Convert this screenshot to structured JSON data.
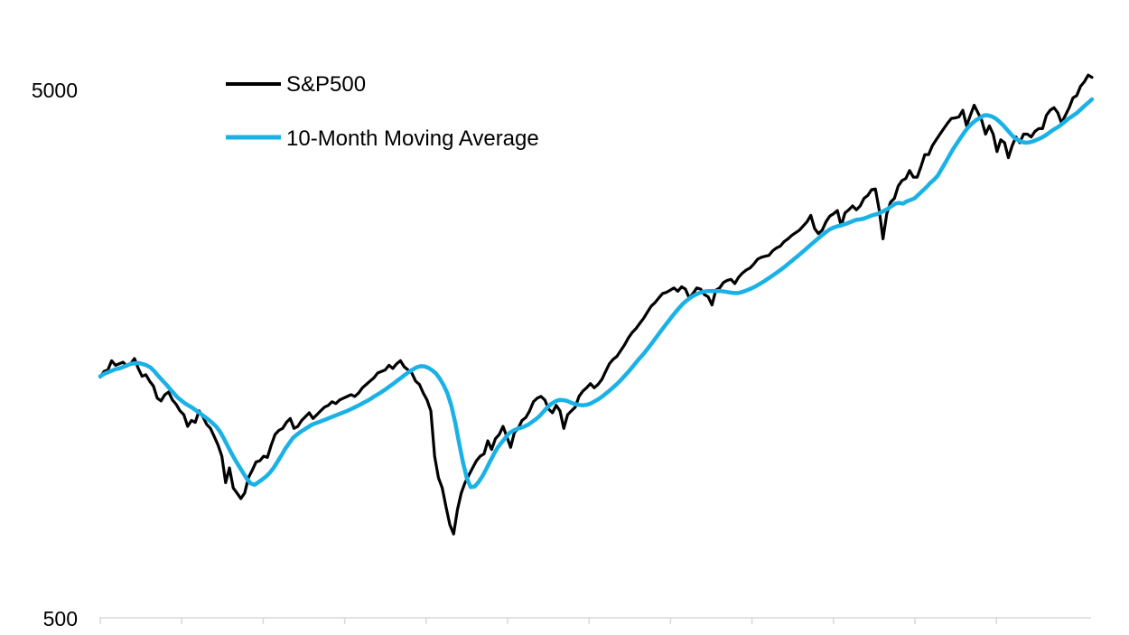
{
  "chart_data": {
    "type": "line",
    "title": "",
    "xlabel": "",
    "ylabel": "",
    "yscale": "log",
    "ylim": [
      500,
      5000
    ],
    "y_tick_labels": [
      "5000",
      "500"
    ],
    "x_tick_count": 12,
    "legend_position": "top-left",
    "series": [
      {
        "name": "S&P500",
        "color": "#000000",
        "values": [
          1425,
          1460,
          1470,
          1530,
          1500,
          1510,
          1520,
          1495,
          1510,
          1545,
          1480,
          1430,
          1440,
          1400,
          1370,
          1300,
          1285,
          1320,
          1335,
          1290,
          1265,
          1230,
          1210,
          1150,
          1180,
          1170,
          1230,
          1200,
          1160,
          1140,
          1100,
          1060,
          1010,
          900,
          960,
          880,
          860,
          840,
          860,
          920,
          950,
          985,
          990,
          1010,
          1005,
          1060,
          1110,
          1130,
          1140,
          1170,
          1190,
          1140,
          1150,
          1180,
          1200,
          1220,
          1190,
          1210,
          1230,
          1250,
          1260,
          1280,
          1270,
          1290,
          1300,
          1310,
          1320,
          1310,
          1330,
          1360,
          1380,
          1400,
          1420,
          1450,
          1460,
          1470,
          1500,
          1480,
          1510,
          1530,
          1490,
          1470,
          1450,
          1400,
          1380,
          1330,
          1290,
          1230,
          1010,
          920,
          880,
          810,
          750,
          720,
          800,
          860,
          900,
          930,
          960,
          990,
          1010,
          1020,
          1080,
          1040,
          1090,
          1110,
          1150,
          1100,
          1050,
          1120,
          1140,
          1180,
          1195,
          1230,
          1280,
          1300,
          1310,
          1290,
          1240,
          1220,
          1260,
          1230,
          1140,
          1210,
          1230,
          1250,
          1310,
          1340,
          1360,
          1385,
          1360,
          1380,
          1410,
          1460,
          1510,
          1540,
          1560,
          1600,
          1640,
          1690,
          1730,
          1760,
          1800,
          1840,
          1890,
          1940,
          1970,
          2010,
          2050,
          2060,
          2080,
          2100,
          2070,
          2110,
          2090,
          2010,
          2050,
          2100,
          2090,
          2040,
          2020,
          1950,
          2080,
          2100,
          2150,
          2170,
          2180,
          2140,
          2200,
          2240,
          2270,
          2290,
          2330,
          2380,
          2400,
          2410,
          2420,
          2470,
          2500,
          2520,
          2570,
          2600,
          2640,
          2670,
          2700,
          2750,
          2800,
          2880,
          2720,
          2660,
          2700,
          2800,
          2870,
          2900,
          2940,
          2750,
          2910,
          2950,
          3000,
          2950,
          3000,
          3100,
          3140,
          3220,
          3230,
          2950,
          2600,
          2900,
          3050,
          3100,
          3270,
          3350,
          3380,
          3500,
          3400,
          3400,
          3560,
          3750,
          3750,
          3900,
          4000,
          4100,
          4200,
          4300,
          4390,
          4400,
          4420,
          4550,
          4250,
          4450,
          4650,
          4500,
          4350,
          4100,
          4250,
          4100,
          3800,
          4000,
          3950,
          3700,
          3900,
          4050,
          3950,
          4100,
          4100,
          4050,
          4150,
          4200,
          4200,
          4450,
          4550,
          4600,
          4500,
          4300,
          4450,
          4600,
          4800,
          4850,
          5050,
          5150,
          5300,
          5250
        ]
      },
      {
        "name": "10-Month Moving Average",
        "color": "#1ab2e6",
        "values": [
          1430,
          1445,
          1455,
          1465,
          1475,
          1480,
          1490,
          1500,
          1510,
          1513,
          1515,
          1508,
          1500,
          1486,
          1462,
          1433,
          1407,
          1382,
          1355,
          1330,
          1305,
          1287,
          1270,
          1258,
          1245,
          1230,
          1215,
          1200,
          1185,
          1168,
          1150,
          1125,
          1092,
          1057,
          1023,
          993,
          966,
          940,
          915,
          897,
          892,
          902,
          913,
          925,
          941,
          962,
          988,
          1015,
          1045,
          1070,
          1095,
          1110,
          1124,
          1136,
          1148,
          1160,
          1167,
          1174,
          1182,
          1190,
          1198,
          1206,
          1214,
          1222,
          1230,
          1240,
          1250,
          1260,
          1272,
          1283,
          1295,
          1310,
          1323,
          1337,
          1352,
          1369,
          1385,
          1404,
          1421,
          1440,
          1457,
          1473,
          1487,
          1494,
          1493,
          1484,
          1468,
          1448,
          1415,
          1375,
          1326,
          1257,
          1168,
          1069,
          983,
          918,
          883,
          885,
          902,
          925,
          954,
          987,
          1019,
          1049,
          1072,
          1094,
          1117,
          1128,
          1138,
          1143,
          1150,
          1160,
          1174,
          1188,
          1206,
          1229,
          1252,
          1270,
          1283,
          1290,
          1289,
          1284,
          1275,
          1267,
          1263,
          1260,
          1263,
          1269,
          1281,
          1293,
          1308,
          1326,
          1344,
          1364,
          1385,
          1409,
          1435,
          1462,
          1492,
          1523,
          1553,
          1583,
          1617,
          1653,
          1691,
          1730,
          1769,
          1808,
          1848,
          1887,
          1925,
          1960,
          1989,
          2015,
          2035,
          2051,
          2063,
          2070,
          2072,
          2073,
          2072,
          2071,
          2066,
          2060,
          2055,
          2053,
          2060,
          2071,
          2085,
          2100,
          2118,
          2139,
          2161,
          2185,
          2210,
          2236,
          2263,
          2291,
          2323,
          2355,
          2388,
          2421,
          2456,
          2492,
          2529,
          2566,
          2603,
          2640,
          2676,
          2708,
          2730,
          2746,
          2758,
          2772,
          2790,
          2808,
          2825,
          2830,
          2842,
          2860,
          2880,
          2892,
          2910,
          2935,
          2960,
          2995,
          3030,
          3040,
          3030,
          3060,
          3080,
          3100,
          3150,
          3200,
          3250,
          3310,
          3360,
          3420,
          3520,
          3620,
          3730,
          3840,
          3940,
          4040,
          4140,
          4230,
          4300,
          4360,
          4400,
          4450,
          4450,
          4430,
          4390,
          4330,
          4260,
          4180,
          4100,
          4030,
          3990,
          3960,
          3950,
          3960,
          3980,
          4010,
          4040,
          4080,
          4130,
          4180,
          4220,
          4270,
          4330,
          4390,
          4440,
          4490,
          4560,
          4630,
          4700,
          4770
        ]
      }
    ]
  }
}
